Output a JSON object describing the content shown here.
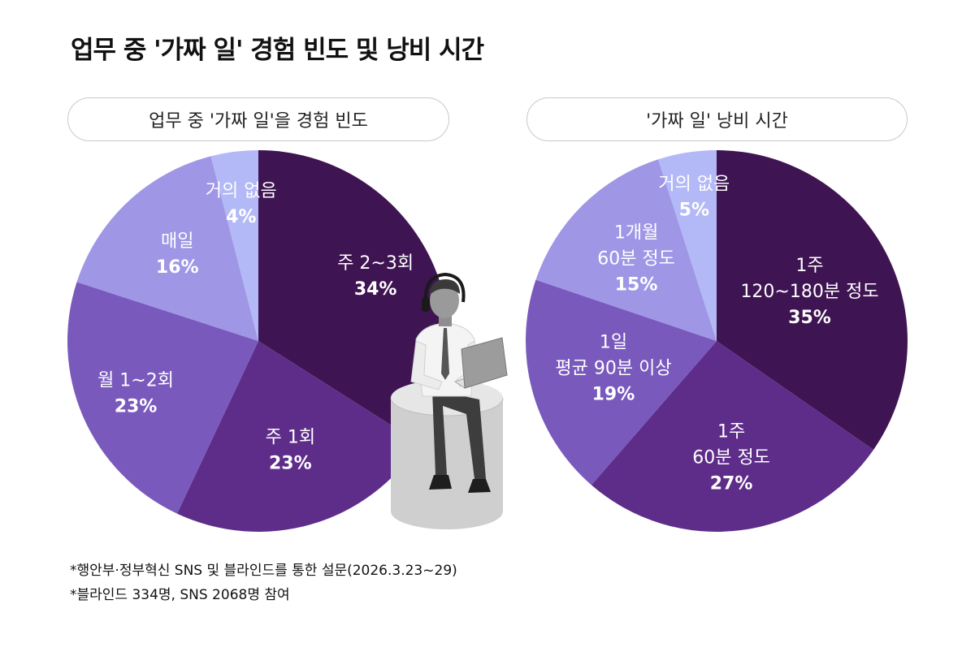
{
  "title": "업무 중 '가짜 일' 경험 빈도 및 낭비 시간",
  "footnotes": [
    "*행안부·정부혁신 SNS 및 블라인드를 통한 설문(2026.3.23~29)",
    "*블라인드 334명, SNS 2068명 참여"
  ],
  "chart_data": [
    {
      "type": "pie",
      "title": "업무 중 '가짜 일'을 경험 빈도",
      "slices": [
        {
          "label": "주 2~3회",
          "value": 34,
          "display": "34%",
          "color": "#3f1452"
        },
        {
          "label": "주 1회",
          "value": 23,
          "display": "23%",
          "color": "#5e2d8a"
        },
        {
          "label": "월 1~2회",
          "value": 23,
          "display": "23%",
          "color": "#7a59bd"
        },
        {
          "label": "매일",
          "value": 16,
          "display": "16%",
          "color": "#9f96e6"
        },
        {
          "label": "거의 없음",
          "value": 4,
          "display": "4%",
          "color": "#b3b9f6"
        }
      ]
    },
    {
      "type": "pie",
      "title": "'가짜 일' 낭비 시간",
      "slices": [
        {
          "label": "1주 120~180분 정도",
          "value": 35,
          "display": "35%",
          "color": "#3f1452"
        },
        {
          "label": "1주 60분 정도",
          "value": 27,
          "display": "27%",
          "color": "#5e2d8a"
        },
        {
          "label": "1일 평균 90분 이상",
          "value": 19,
          "display": "19%",
          "color": "#7a59bd"
        },
        {
          "label": "1개월 60분 정도",
          "value": 15,
          "display": "15%",
          "color": "#9f96e6"
        },
        {
          "label": "거의 없음",
          "value": 5,
          "display": "5%",
          "color": "#b3b9f6"
        }
      ]
    }
  ]
}
